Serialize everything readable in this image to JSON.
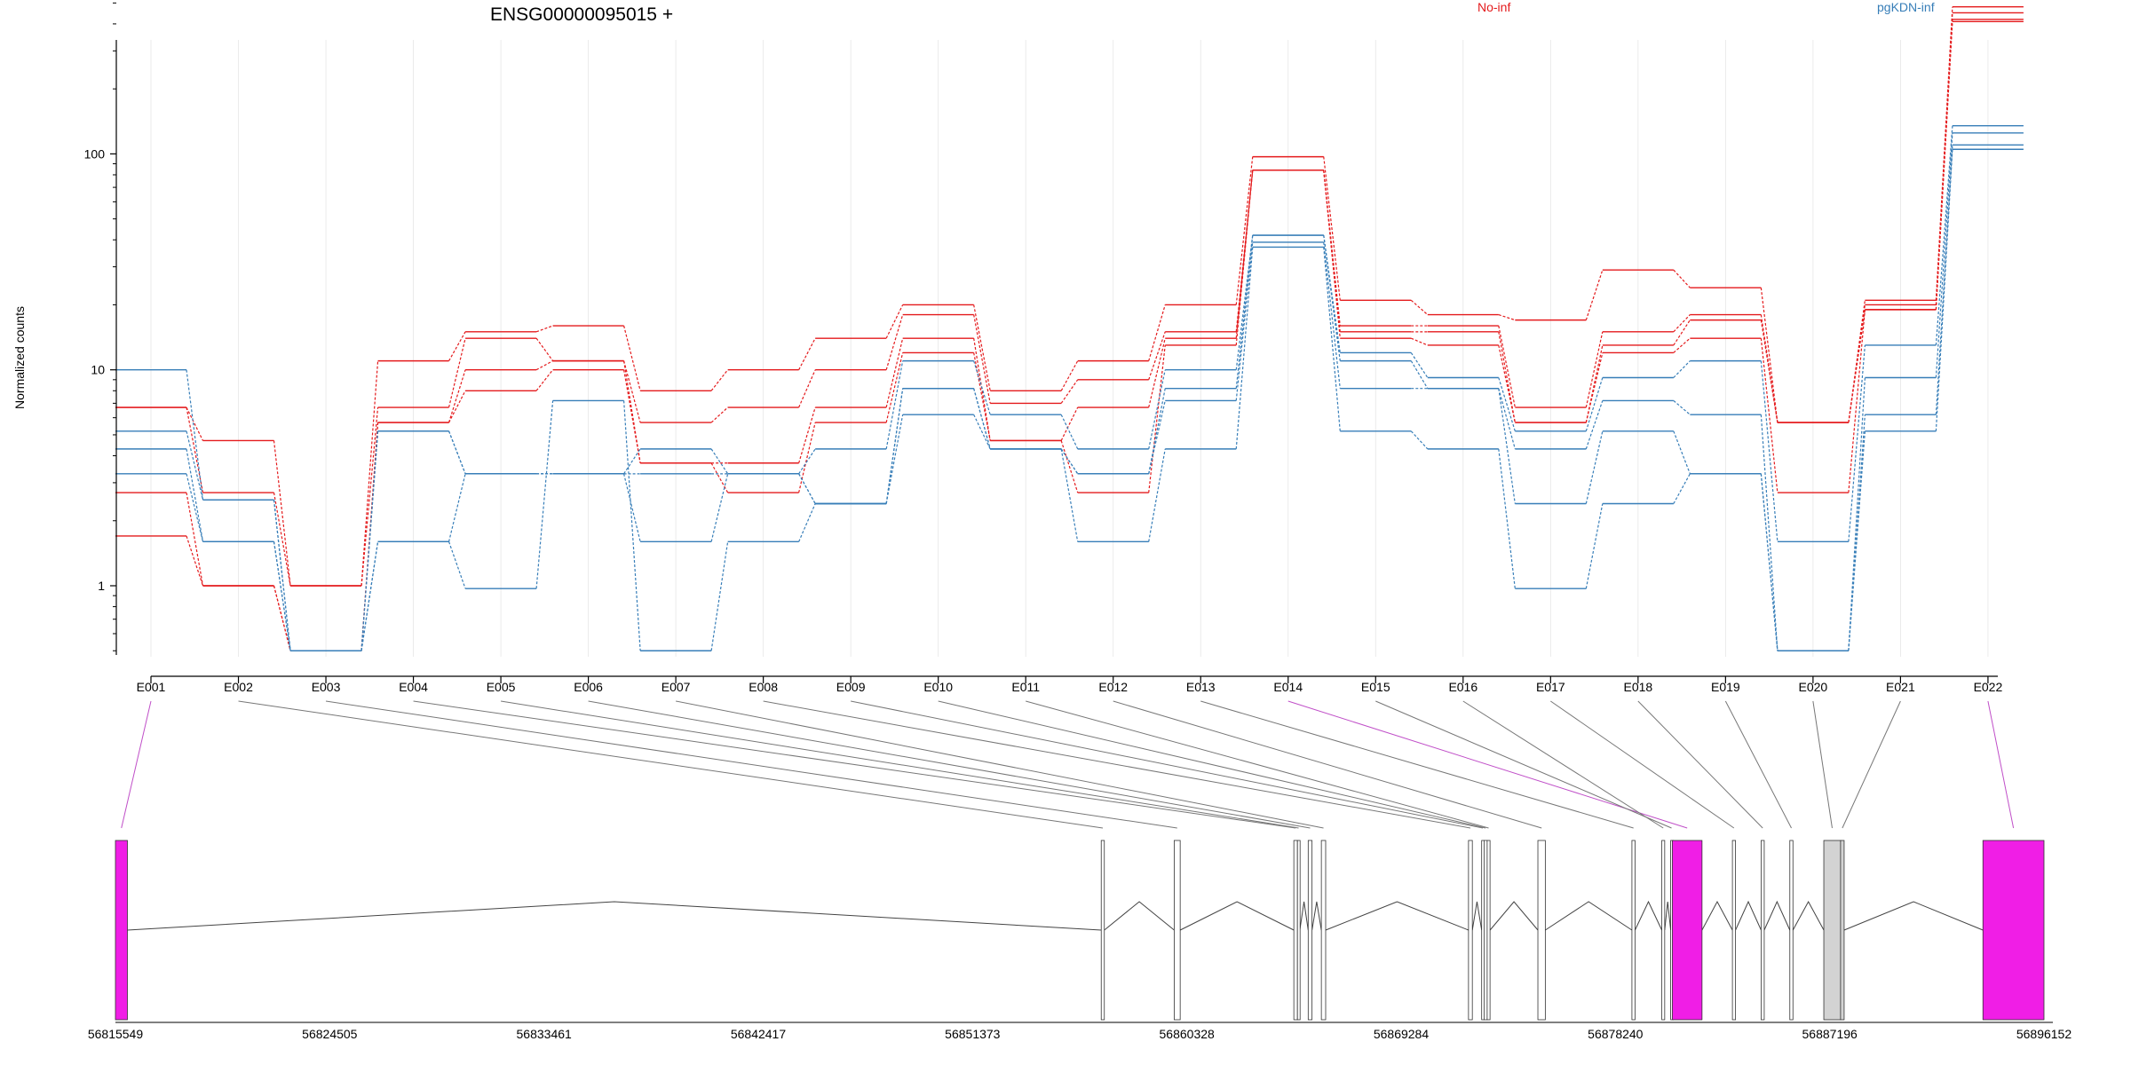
{
  "chart_data": {
    "type": "line",
    "title": "ENSG00000095015 +",
    "ylabel": "Normalized counts",
    "xlabel": "",
    "y_scale": "log",
    "ylim": [
      0.5,
      600
    ],
    "y_ticks": [
      1,
      10,
      100
    ],
    "y_tick_labels": [
      "1",
      "10",
      "100"
    ],
    "grid": "vertical",
    "legend_position": "top",
    "legend": [
      {
        "name": "No-inf",
        "color": "#e41a1c"
      },
      {
        "name": "pgKDN-inf",
        "color": "#377eb8"
      }
    ],
    "categories": [
      "E001",
      "E002",
      "E003",
      "E004",
      "E005",
      "E006",
      "E007",
      "E008",
      "E009",
      "E010",
      "E011",
      "E012",
      "E013",
      "E014",
      "E015",
      "E016",
      "E017",
      "E018",
      "E019",
      "E020",
      "E021",
      "E022"
    ],
    "series": [
      {
        "group": "No-inf",
        "color": "#e41a1c",
        "values": [
          6.7,
          4.7,
          1.0,
          11.0,
          15.0,
          16.0,
          8.0,
          10.0,
          14.0,
          20.0,
          8.0,
          11.0,
          20.0,
          97,
          21.0,
          18.0,
          17.0,
          29.0,
          24.0,
          5.7,
          21.0,
          480
        ]
      },
      {
        "group": "No-inf",
        "color": "#e41a1c",
        "values": [
          6.7,
          2.7,
          1.0,
          6.7,
          14.0,
          11.0,
          5.7,
          6.7,
          10.0,
          18.0,
          7.0,
          9.0,
          15.0,
          84,
          16.0,
          16.0,
          6.7,
          15.0,
          18.0,
          5.7,
          20.0,
          450
        ]
      },
      {
        "group": "No-inf",
        "color": "#e41a1c",
        "values": [
          2.7,
          1.0,
          0.5,
          5.7,
          10.0,
          11.0,
          3.7,
          3.7,
          6.7,
          14.0,
          4.7,
          6.7,
          14.0,
          84,
          15.0,
          15.0,
          5.7,
          13.0,
          17.0,
          5.7,
          19.0,
          420
        ]
      },
      {
        "group": "No-inf",
        "color": "#e41a1c",
        "values": [
          1.7,
          1.0,
          0.5,
          5.7,
          8.0,
          10.0,
          3.7,
          2.7,
          5.7,
          12.0,
          4.7,
          2.7,
          13.0,
          84,
          14.0,
          13.0,
          5.7,
          12.0,
          14.0,
          2.7,
          19.0,
          410
        ]
      },
      {
        "group": "pgKDN-inf",
        "color": "#377eb8",
        "values": [
          10.0,
          2.5,
          0.5,
          5.2,
          3.3,
          3.3,
          4.3,
          3.3,
          4.3,
          11.0,
          6.2,
          4.3,
          10.0,
          42,
          12.0,
          9.2,
          5.2,
          9.2,
          11.0,
          1.6,
          13.0,
          135
        ]
      },
      {
        "group": "pgKDN-inf",
        "color": "#377eb8",
        "values": [
          5.2,
          2.5,
          0.5,
          5.2,
          3.3,
          3.3,
          3.3,
          3.3,
          2.4,
          8.2,
          4.3,
          3.3,
          8.2,
          42,
          11.0,
          8.2,
          4.3,
          7.2,
          6.2,
          0.5,
          9.2,
          125
        ]
      },
      {
        "group": "pgKDN-inf",
        "color": "#377eb8",
        "values": [
          4.3,
          1.6,
          0.5,
          1.6,
          3.3,
          3.3,
          1.6,
          3.3,
          2.4,
          8.2,
          4.3,
          3.3,
          7.2,
          39,
          8.2,
          8.2,
          2.4,
          5.2,
          3.3,
          0.5,
          6.2,
          110
        ]
      },
      {
        "group": "pgKDN-inf",
        "color": "#377eb8",
        "values": [
          3.3,
          1.6,
          0.5,
          1.6,
          0.97,
          7.2,
          0.5,
          1.6,
          2.4,
          6.2,
          4.3,
          1.6,
          4.3,
          37,
          5.2,
          4.3,
          0.97,
          2.4,
          3.3,
          0.5,
          5.2,
          105
        ]
      }
    ],
    "gene_model": {
      "coordinate_labels": [
        "56815549",
        "56824505",
        "56833461",
        "56842417",
        "56851373",
        "56860328",
        "56869284",
        "56878240",
        "56887196",
        "56896152"
      ],
      "genomic_range": [
        56815549,
        56896152
      ],
      "exons": [
        {
          "id": "E001",
          "start": 56815549,
          "end": 56816050,
          "highlight": true
        },
        {
          "id": "E002",
          "start": 56856750,
          "end": 56856880,
          "highlight": false
        },
        {
          "id": "E003",
          "start": 56859800,
          "end": 56860050,
          "highlight": false
        },
        {
          "id": "E004",
          "start": 56864800,
          "end": 56864950,
          "highlight": false
        },
        {
          "id": "E005",
          "start": 56864950,
          "end": 56865050,
          "highlight": false
        },
        {
          "id": "E006",
          "start": 56865400,
          "end": 56865560,
          "highlight": false
        },
        {
          "id": "E007",
          "start": 56865950,
          "end": 56866130,
          "highlight": false
        },
        {
          "id": "E008",
          "start": 56872100,
          "end": 56872260,
          "highlight": false
        },
        {
          "id": "E009",
          "start": 56872650,
          "end": 56872750,
          "highlight": false
        },
        {
          "id": "E010",
          "start": 56872750,
          "end": 56872880,
          "highlight": false
        },
        {
          "id": "E011",
          "start": 56872880,
          "end": 56873000,
          "highlight": false
        },
        {
          "id": "E012",
          "start": 56875000,
          "end": 56875310,
          "highlight": false
        },
        {
          "id": "E013",
          "start": 56878930,
          "end": 56879060,
          "highlight": false
        },
        {
          "id": "E014",
          "start": 56880620,
          "end": 56881860,
          "highlight": true
        },
        {
          "id": "E015",
          "start": 56880550,
          "end": 56880620,
          "highlight": false
        },
        {
          "id": "E016",
          "start": 56880180,
          "end": 56880300,
          "highlight": false
        },
        {
          "id": "E017",
          "start": 56883130,
          "end": 56883260,
          "highlight": false
        },
        {
          "id": "E018",
          "start": 56884330,
          "end": 56884460,
          "highlight": false
        },
        {
          "id": "E019",
          "start": 56885530,
          "end": 56885660,
          "highlight": false
        },
        {
          "id": "E020",
          "start": 56886950,
          "end": 56887650,
          "highlight": false
        },
        {
          "id": "E021",
          "start": 56887650,
          "end": 56887800,
          "highlight": false
        },
        {
          "id": "E022",
          "start": 56893600,
          "end": 56896152,
          "highlight": true
        }
      ],
      "highlight_color": "#f01ee6",
      "exon_color": "#ffffff",
      "shaded_exon_color": "#d3d3d3"
    }
  }
}
